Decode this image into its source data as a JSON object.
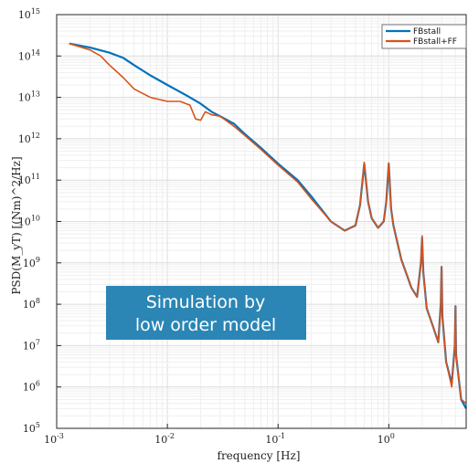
{
  "chart_data": {
    "type": "line",
    "title": "",
    "xlabel": "frequency [Hz]",
    "ylabel": "PSD(M_yT) [(Nm)^2/Hz]",
    "xscale": "log",
    "yscale": "log",
    "xlim": [
      0.001,
      5
    ],
    "ylim": [
      100000,
      1000000000000000
    ],
    "grid": true,
    "legend_position": "top-right",
    "x_ticks": [
      {
        "base": "10",
        "exp": "-3",
        "value": 0.001
      },
      {
        "base": "10",
        "exp": "-2",
        "value": 0.01
      },
      {
        "base": "10",
        "exp": "-1",
        "value": 0.1
      },
      {
        "base": "10",
        "exp": "0",
        "value": 1
      }
    ],
    "y_ticks": [
      {
        "base": "10",
        "exp": "5",
        "value": 5
      },
      {
        "base": "10",
        "exp": "6",
        "value": 6
      },
      {
        "base": "10",
        "exp": "7",
        "value": 7
      },
      {
        "base": "10",
        "exp": "8",
        "value": 8
      },
      {
        "base": "10",
        "exp": "9",
        "value": 9
      },
      {
        "base": "10",
        "exp": "10",
        "value": 10
      },
      {
        "base": "10",
        "exp": "11",
        "value": 11
      },
      {
        "base": "10",
        "exp": "12",
        "value": 12
      },
      {
        "base": "10",
        "exp": "13",
        "value": 13
      },
      {
        "base": "10",
        "exp": "14",
        "value": 14
      },
      {
        "base": "10",
        "exp": "15",
        "value": 15
      }
    ],
    "series": [
      {
        "name": "FBstall",
        "color": "#0072BD",
        "x": [
          0.0013,
          0.002,
          0.003,
          0.004,
          0.005,
          0.007,
          0.01,
          0.015,
          0.02,
          0.025,
          0.03,
          0.04,
          0.05,
          0.07,
          0.1,
          0.15,
          0.2,
          0.3,
          0.4,
          0.5,
          0.55,
          0.6,
          0.65,
          0.7,
          0.8,
          0.9,
          0.95,
          1.0,
          1.05,
          1.1,
          1.3,
          1.6,
          1.8,
          1.95,
          2.0,
          2.05,
          2.2,
          2.5,
          2.8,
          2.95,
          3.0,
          3.05,
          3.3,
          3.7,
          3.95,
          4.0,
          4.05,
          4.5,
          5.0
        ],
        "y": [
          200000000000000.0,
          160000000000000.0,
          120000000000000.0,
          90000000000000.0,
          60000000000000.0,
          34000000000000.0,
          20000000000000.0,
          11000000000000.0,
          7000000000000.0,
          4500000000000.0,
          3500000000000.0,
          2300000000000.0,
          1300000000000.0,
          600000000000.0,
          250000000000.0,
          100000000000.0,
          40000000000.0,
          10000000000.0,
          6000000000.0,
          8000000000.0,
          25000000000.0,
          250000000000.0,
          30000000000.0,
          12000000000.0,
          7000000000.0,
          10000000000.0,
          30000000000.0,
          250000000000.0,
          20000000000.0,
          8000000000.0,
          1200000000.0,
          250000000.0,
          150000000.0,
          1000000000.0,
          4000000000.0,
          600000000.0,
          80000000.0,
          30000000.0,
          12000000.0,
          100000000.0,
          800000000.0,
          50000000.0,
          4000000.0,
          1200000.0,
          10000000.0,
          90000000.0,
          6000000.0,
          500000.0,
          300000.0
        ]
      },
      {
        "name": "FBstall+FF",
        "color": "#D95319",
        "x": [
          0.0013,
          0.002,
          0.0025,
          0.003,
          0.004,
          0.005,
          0.007,
          0.01,
          0.013,
          0.016,
          0.018,
          0.02,
          0.022,
          0.025,
          0.03,
          0.04,
          0.05,
          0.07,
          0.1,
          0.15,
          0.2,
          0.3,
          0.4,
          0.5,
          0.55,
          0.6,
          0.65,
          0.7,
          0.8,
          0.9,
          0.95,
          1.0,
          1.05,
          1.1,
          1.3,
          1.6,
          1.8,
          1.95,
          2.0,
          2.05,
          2.2,
          2.5,
          2.8,
          2.95,
          3.0,
          3.05,
          3.3,
          3.7,
          3.95,
          4.0,
          4.05,
          4.5,
          5.0
        ],
        "y": [
          200000000000000.0,
          140000000000000.0,
          100000000000000.0,
          60000000000000.0,
          30000000000000.0,
          16000000000000.0,
          10000000000000.0,
          8000000000000.0,
          8000000000000.0,
          6500000000000.0,
          3000000000000.0,
          2800000000000.0,
          4500000000000.0,
          3800000000000.0,
          3500000000000.0,
          2000000000000.0,
          1200000000000.0,
          550000000000.0,
          230000000000.0,
          90000000000.0,
          35000000000.0,
          10000000000.0,
          6000000000.0,
          8000000000.0,
          25000000000.0,
          270000000000.0,
          30000000000.0,
          12000000000.0,
          7000000000.0,
          10000000000.0,
          30000000000.0,
          260000000000.0,
          20000000000.0,
          8000000000.0,
          1200000000.0,
          250000000.0,
          150000000.0,
          1000000000.0,
          4500000000.0,
          600000000.0,
          80000000.0,
          30000000.0,
          12000000.0,
          100000000.0,
          800000000.0,
          50000000.0,
          4000000.0,
          1000000.0,
          10000000.0,
          90000000.0,
          6000000.0,
          500000.0,
          400000.0
        ]
      }
    ],
    "annotation": {
      "lines": [
        "Simulation by",
        "low order model"
      ],
      "background": "#2B86B5",
      "text_color": "#FFFFFF"
    }
  }
}
